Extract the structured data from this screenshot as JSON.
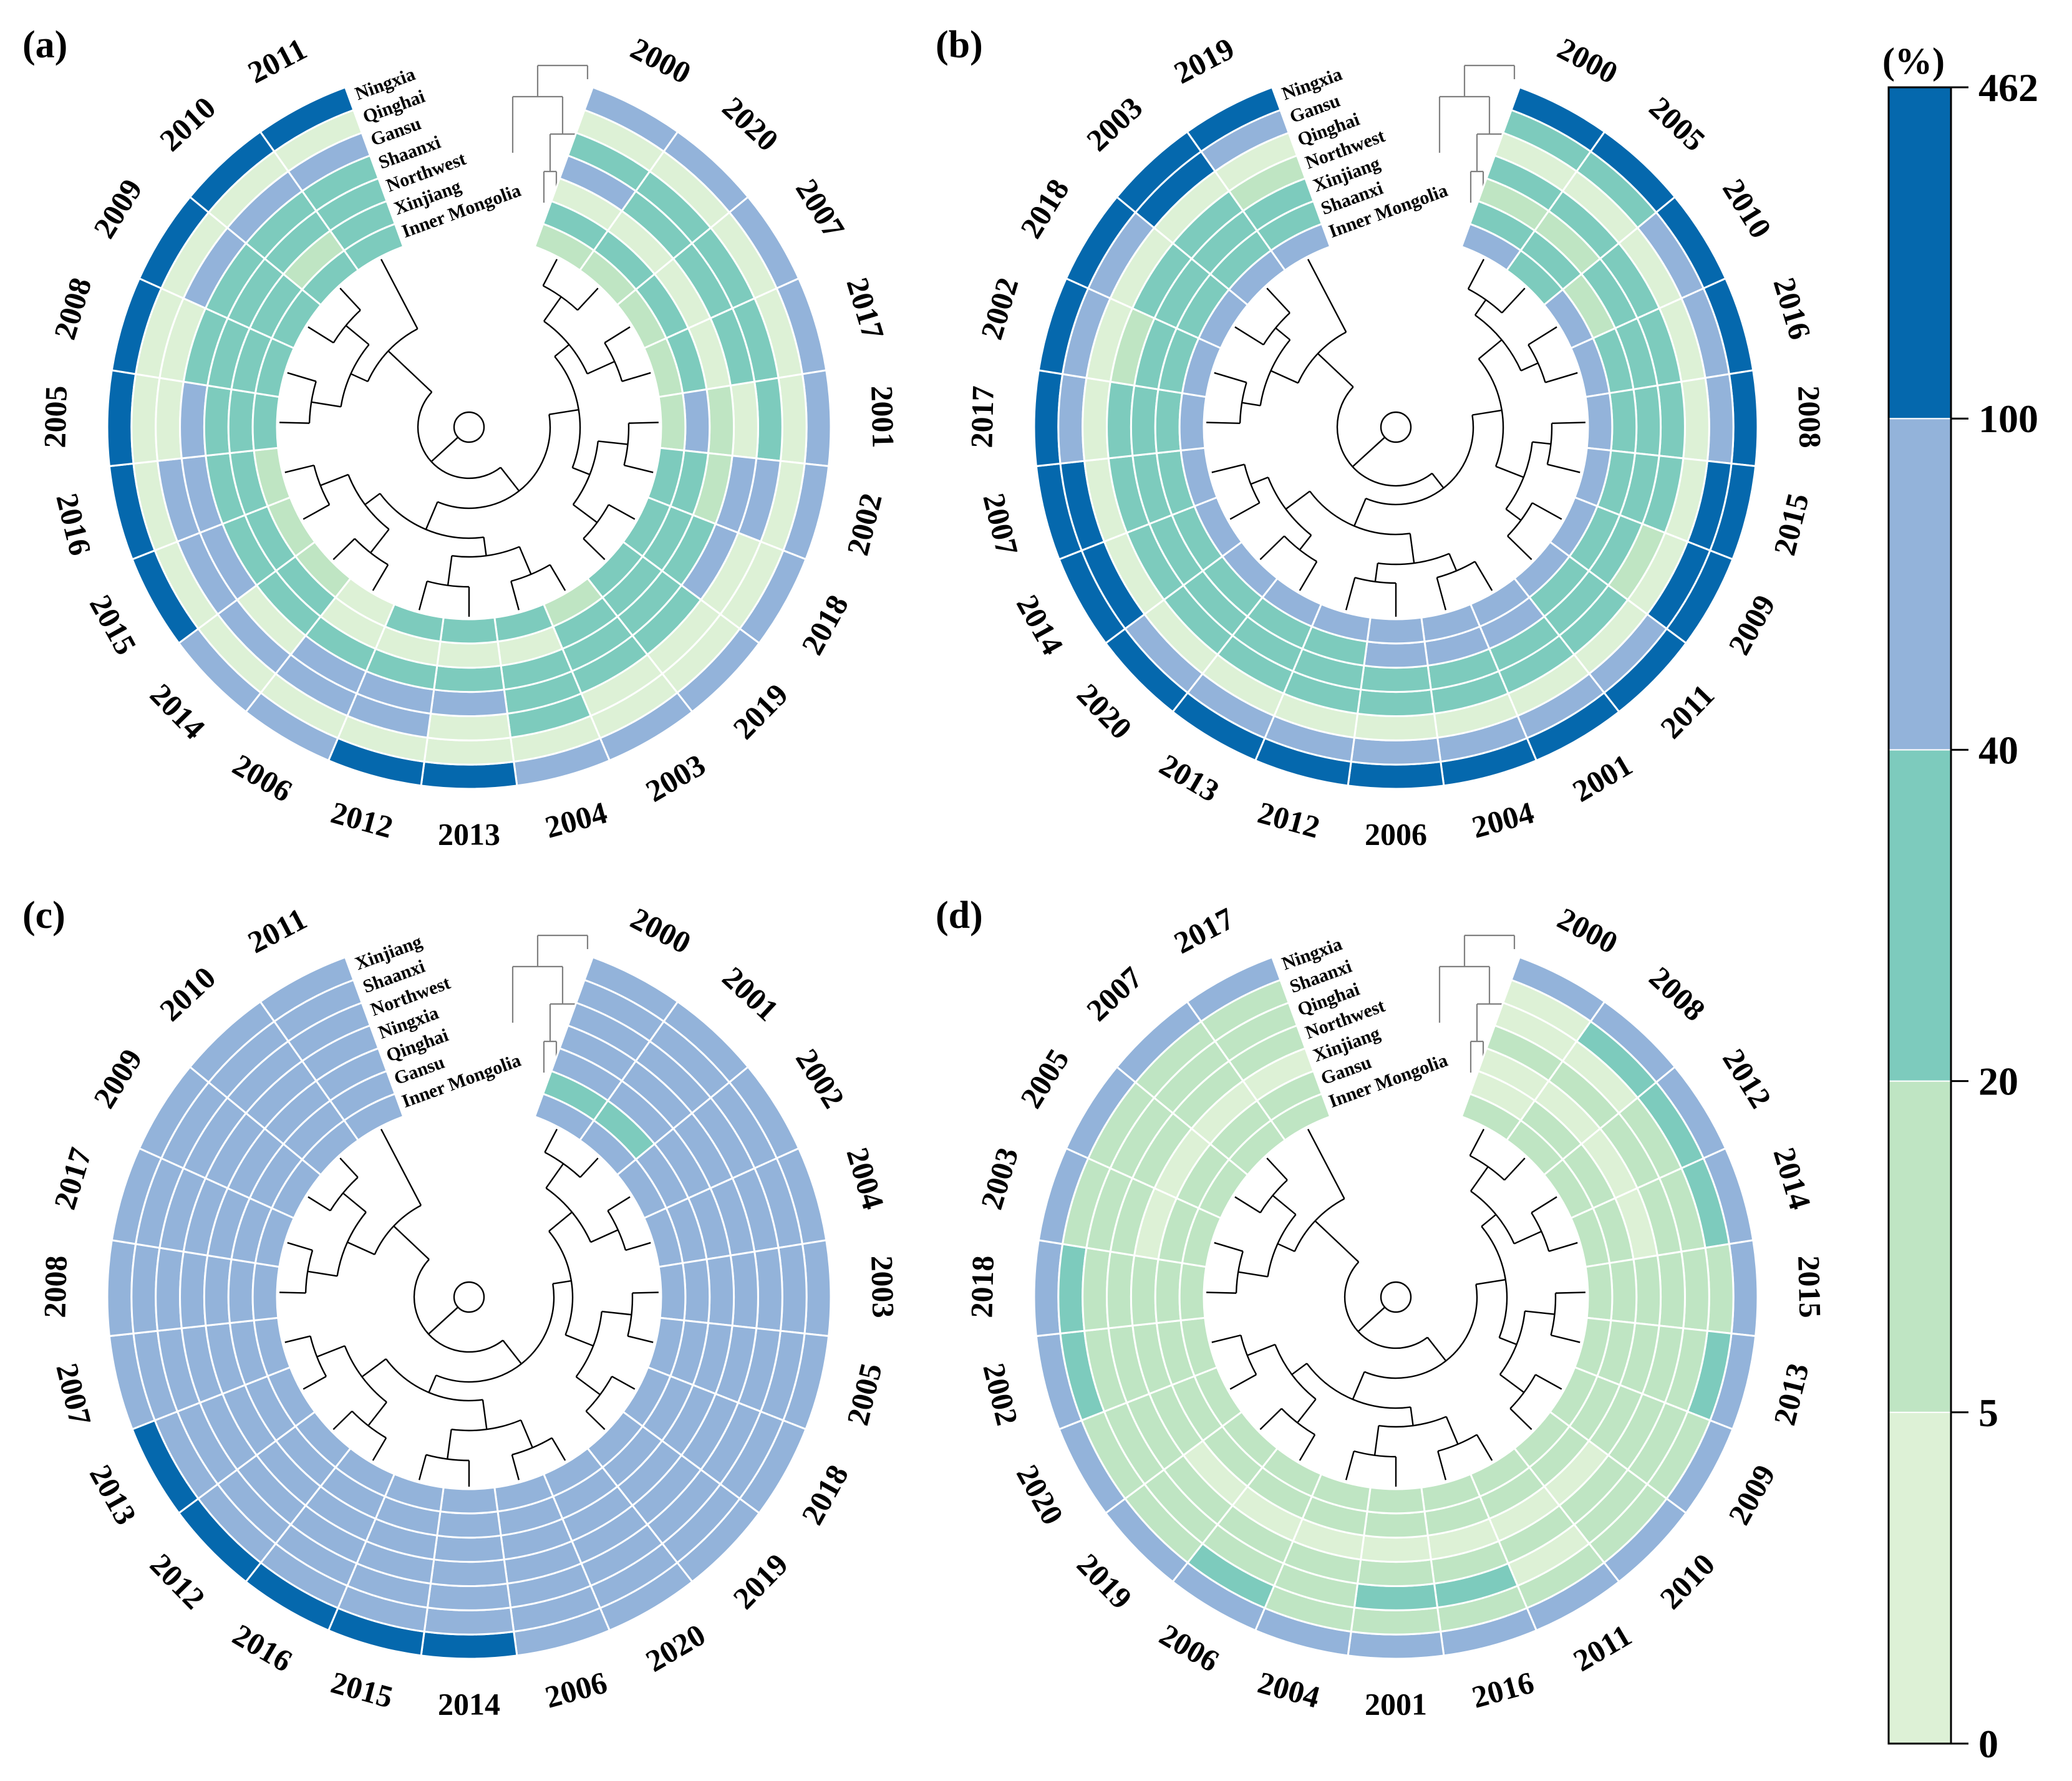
{
  "colors": {
    "bins": [
      "#ddf1d6",
      "#bfe5c3",
      "#7dcbbd",
      "#93b3da",
      "#0568ad"
    ],
    "ring_stroke": "#ffffff",
    "tree": "#000000",
    "tree_outer": "#808080"
  },
  "legend": {
    "title": "(%)",
    "ticks": [
      "0",
      "5",
      "20",
      "40",
      "100",
      "462"
    ]
  },
  "chart_data": [
    {
      "type": "heatmap",
      "panel": "(a)",
      "rows": [
        "Ningxia",
        "Qinghai",
        "Gansu",
        "Shaanxi",
        "Northwest",
        "Xinjiang",
        "Inner Mongolia"
      ],
      "columns": [
        "2000",
        "2020",
        "2007",
        "2017",
        "2001",
        "2002",
        "2018",
        "2019",
        "2003",
        "2004",
        "2013",
        "2012",
        "2006",
        "2014",
        "2015",
        "2016",
        "2005",
        "2008",
        "2009",
        "2010",
        "2011"
      ],
      "bins": [
        [
          3,
          3,
          3,
          3,
          3,
          3,
          3,
          3,
          3,
          3,
          4,
          4,
          3,
          3,
          4,
          4,
          4,
          4,
          4,
          4,
          4
        ],
        [
          0,
          0,
          0,
          0,
          0,
          0,
          0,
          0,
          0,
          0,
          0,
          0,
          0,
          0,
          0,
          0,
          0,
          0,
          0,
          0,
          0
        ],
        [
          2,
          2,
          2,
          2,
          2,
          3,
          0,
          0,
          0,
          2,
          0,
          3,
          3,
          3,
          3,
          3,
          0,
          0,
          3,
          3,
          3
        ],
        [
          3,
          2,
          2,
          2,
          0,
          3,
          3,
          2,
          2,
          2,
          3,
          3,
          3,
          0,
          3,
          3,
          3,
          2,
          2,
          2,
          2
        ],
        [
          0,
          0,
          0,
          0,
          1,
          1,
          2,
          2,
          2,
          2,
          2,
          2,
          2,
          2,
          2,
          2,
          2,
          2,
          2,
          2,
          2
        ],
        [
          2,
          2,
          2,
          2,
          3,
          2,
          2,
          2,
          2,
          0,
          0,
          0,
          0,
          2,
          2,
          2,
          2,
          2,
          2,
          1,
          2
        ],
        [
          1,
          1,
          1,
          1,
          1,
          2,
          2,
          2,
          1,
          2,
          2,
          2,
          0,
          1,
          1,
          1,
          2,
          2,
          2,
          2,
          2
        ]
      ],
      "year_labels": [
        "2000",
        "2020",
        "2007",
        "2017",
        "2001",
        "2002",
        "2018",
        "2019",
        "2003",
        "2004",
        "2013",
        "2012",
        "2006",
        "2014",
        "2015",
        "2016",
        "2005",
        "2008",
        "2009",
        "2010",
        "2011"
      ],
      "region_labels": [
        "Ningxia",
        "Qinghai",
        "Gansu",
        "Shaanxi",
        "Northwest",
        "Xinjiang",
        "Inner Mongolia"
      ],
      "colorbar_ticks": [
        "0",
        "5",
        "20",
        "40",
        "100",
        "462"
      ]
    },
    {
      "type": "heatmap",
      "panel": "(b)",
      "rows": [
        "Ningxia",
        "Gansu",
        "Qinghai",
        "Northwest",
        "Xinjiang",
        "Shaanxi",
        "Inner Mongolia"
      ],
      "columns": [
        "2000",
        "2005",
        "2010",
        "2016",
        "2008",
        "2015",
        "2009",
        "2011",
        "2001",
        "2004",
        "2006",
        "2012",
        "2013",
        "2020",
        "2014",
        "2007",
        "2017",
        "2002",
        "2018",
        "2003",
        "2019"
      ],
      "bins": [
        [
          4,
          4,
          4,
          4,
          4,
          4,
          4,
          4,
          4,
          4,
          4,
          4,
          4,
          4,
          4,
          4,
          4,
          4,
          4,
          4,
          4
        ],
        [
          2,
          2,
          3,
          3,
          3,
          4,
          4,
          3,
          3,
          3,
          3,
          3,
          3,
          3,
          4,
          4,
          3,
          3,
          3,
          4,
          3
        ],
        [
          0,
          0,
          0,
          0,
          0,
          0,
          0,
          0,
          0,
          0,
          0,
          0,
          0,
          0,
          0,
          0,
          0,
          0,
          0,
          0,
          0
        ],
        [
          2,
          2,
          2,
          2,
          2,
          2,
          1,
          2,
          2,
          2,
          2,
          2,
          2,
          2,
          2,
          2,
          2,
          1,
          2,
          2,
          1
        ],
        [
          1,
          1,
          2,
          2,
          2,
          2,
          2,
          2,
          2,
          2,
          2,
          2,
          2,
          2,
          2,
          2,
          2,
          2,
          2,
          2,
          2
        ],
        [
          2,
          2,
          1,
          2,
          2,
          2,
          2,
          2,
          3,
          3,
          3,
          2,
          2,
          2,
          2,
          2,
          2,
          2,
          2,
          2,
          2
        ],
        [
          3,
          2,
          3,
          3,
          3,
          3,
          3,
          3,
          3,
          3,
          3,
          3,
          3,
          3,
          3,
          3,
          3,
          3,
          3,
          3,
          3
        ]
      ],
      "year_labels": [
        "2000",
        "2005",
        "2010",
        "2016",
        "2008",
        "2015",
        "2009",
        "2011",
        "2001",
        "2004",
        "2006",
        "2012",
        "2013",
        "2020",
        "2014",
        "2007",
        "2017",
        "2002",
        "2018",
        "2003",
        "2019"
      ],
      "region_labels": [
        "Ningxia",
        "Gansu",
        "Qinghai",
        "Northwest",
        "Xinjiang",
        "Shaanxi",
        "Inner Mongolia"
      ],
      "colorbar_ticks": [
        "0",
        "5",
        "20",
        "40",
        "100",
        "462"
      ]
    },
    {
      "type": "heatmap",
      "panel": "(c)",
      "rows": [
        "Xinjiang",
        "Shaanxi",
        "Northwest",
        "Ningxia",
        "Qinghai",
        "Gansu",
        "Inner Mongolia"
      ],
      "columns": [
        "2000",
        "2001",
        "2002",
        "2004",
        "2003",
        "2005",
        "2018",
        "2019",
        "2020",
        "2006",
        "2014",
        "2015",
        "2016",
        "2012",
        "2013",
        "2007",
        "2008",
        "2017",
        "2009",
        "2010",
        "2011"
      ],
      "bins": [
        [
          3,
          3,
          3,
          3,
          3,
          3,
          3,
          3,
          3,
          3,
          4,
          4,
          4,
          4,
          4,
          3,
          3,
          3,
          3,
          3,
          3
        ],
        [
          3,
          3,
          3,
          3,
          3,
          3,
          3,
          3,
          3,
          3,
          3,
          3,
          3,
          3,
          3,
          3,
          3,
          3,
          3,
          3,
          3
        ],
        [
          3,
          3,
          3,
          3,
          3,
          3,
          3,
          3,
          3,
          3,
          3,
          3,
          3,
          3,
          3,
          3,
          3,
          3,
          3,
          3,
          3
        ],
        [
          3,
          3,
          3,
          3,
          3,
          3,
          3,
          3,
          3,
          3,
          3,
          3,
          3,
          3,
          3,
          3,
          3,
          3,
          3,
          3,
          3
        ],
        [
          3,
          3,
          3,
          3,
          3,
          3,
          3,
          3,
          3,
          3,
          3,
          3,
          3,
          3,
          3,
          3,
          3,
          3,
          3,
          3,
          3
        ],
        [
          2,
          2,
          3,
          3,
          3,
          3,
          3,
          3,
          3,
          3,
          3,
          3,
          3,
          3,
          3,
          3,
          3,
          3,
          3,
          3,
          3
        ],
        [
          3,
          3,
          3,
          3,
          3,
          3,
          3,
          3,
          3,
          3,
          3,
          3,
          3,
          3,
          3,
          3,
          3,
          3,
          3,
          3,
          3
        ]
      ],
      "year_labels": [
        "2000",
        "2001",
        "2002",
        "2004",
        "2003",
        "2005",
        "2018",
        "2019",
        "2020",
        "2006",
        "2014",
        "2015",
        "2016",
        "2012",
        "2013",
        "2007",
        "2008",
        "2017",
        "2009",
        "2010",
        "2011"
      ],
      "region_labels": [
        "Xinjiang",
        "Shaanxi",
        "Northwest",
        "Ningxia",
        "Qinghai",
        "Gansu",
        "Inner Mongolia"
      ],
      "colorbar_ticks": [
        "0",
        "5",
        "20",
        "40",
        "100",
        "462"
      ]
    },
    {
      "type": "heatmap",
      "panel": "(d)",
      "rows": [
        "Ningxia",
        "Shaanxi",
        "Qinghai",
        "Northwest",
        "Xinjiang",
        "Gansu",
        "Inner Mongolia"
      ],
      "columns": [
        "2000",
        "2008",
        "2012",
        "2014",
        "2015",
        "2013",
        "2009",
        "2010",
        "2011",
        "2016",
        "2001",
        "2004",
        "2006",
        "2019",
        "2020",
        "2002",
        "2018",
        "2003",
        "2005",
        "2007",
        "2017"
      ],
      "bins": [
        [
          3,
          3,
          3,
          3,
          3,
          3,
          3,
          3,
          3,
          3,
          3,
          3,
          3,
          3,
          3,
          3,
          3,
          3,
          3,
          3,
          3
        ],
        [
          0,
          2,
          2,
          2,
          1,
          2,
          1,
          1,
          1,
          1,
          1,
          1,
          2,
          1,
          1,
          2,
          2,
          1,
          1,
          1,
          1
        ],
        [
          0,
          0,
          1,
          1,
          1,
          1,
          1,
          1,
          0,
          2,
          2,
          1,
          1,
          1,
          1,
          1,
          1,
          1,
          1,
          1,
          1
        ],
        [
          1,
          1,
          1,
          1,
          1,
          1,
          1,
          1,
          1,
          1,
          1,
          1,
          1,
          1,
          1,
          1,
          1,
          1,
          1,
          1,
          1
        ],
        [
          0,
          0,
          0,
          0,
          1,
          1,
          1,
          0,
          0,
          0,
          0,
          0,
          0,
          0,
          1,
          1,
          1,
          0,
          0,
          0,
          0
        ],
        [
          0,
          1,
          1,
          1,
          1,
          1,
          1,
          1,
          1,
          1,
          1,
          1,
          1,
          1,
          1,
          1,
          1,
          1,
          1,
          1,
          1
        ],
        [
          1,
          1,
          1,
          1,
          1,
          1,
          1,
          1,
          1,
          1,
          1,
          1,
          1,
          1,
          1,
          1,
          1,
          1,
          1,
          1,
          1
        ]
      ],
      "year_labels": [
        "2000",
        "2008",
        "2012",
        "2014",
        "2015",
        "2013",
        "2009",
        "2010",
        "2011",
        "2016",
        "2001",
        "2004",
        "2006",
        "2019",
        "2020",
        "2002",
        "2018",
        "2003",
        "2005",
        "2007",
        "2017"
      ],
      "region_labels": [
        "Ningxia",
        "Shaanxi",
        "Qinghai",
        "Northwest",
        "Xinjiang",
        "Gansu",
        "Inner Mongolia"
      ],
      "colorbar_ticks": [
        "0",
        "5",
        "20",
        "40",
        "100",
        "462"
      ]
    }
  ]
}
